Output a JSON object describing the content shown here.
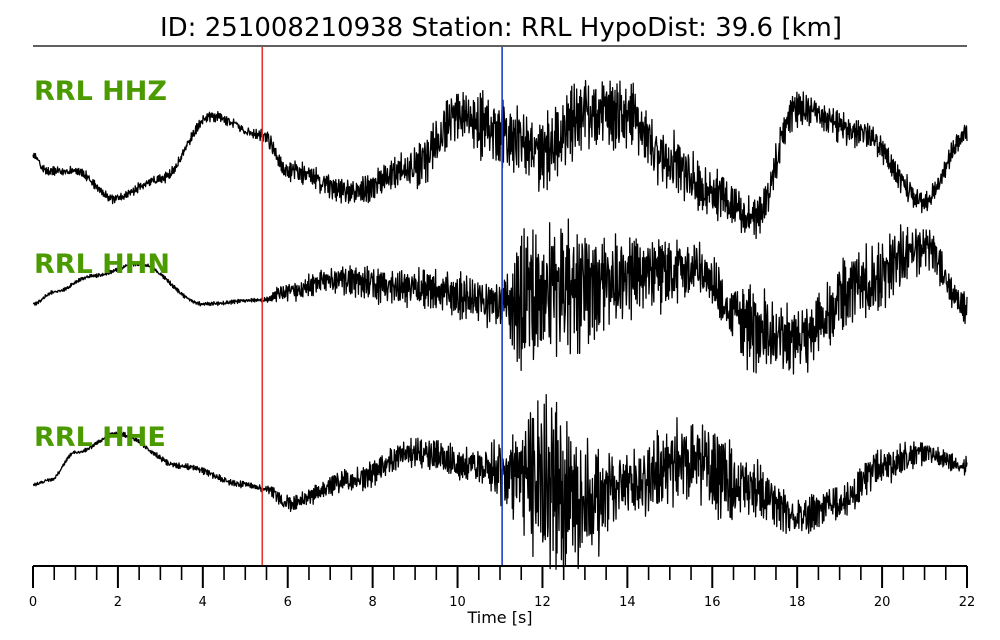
{
  "title": "ID: 251008210938   Station: RRL   HypoDist:    39.6 [km]",
  "colors": {
    "label": "#4a9a00",
    "p_pick": "#e8342c",
    "s_pick": "#1f3fd0",
    "trace": "#000000"
  },
  "chart_data": {
    "type": "line",
    "xlabel": "Time [s]",
    "xlim": [
      0,
      22
    ],
    "x_ticks": [
      0,
      2,
      4,
      6,
      8,
      10,
      12,
      14,
      16,
      18,
      20,
      22
    ],
    "x_minor_step": 0.5,
    "picks": [
      {
        "phase": "P",
        "time": 5.4,
        "color": "#e8342c"
      },
      {
        "phase": "S",
        "time": 11.05,
        "color": "#1f3fd0"
      }
    ],
    "series": [
      {
        "name": "RRL HHZ",
        "envelope": [
          [
            0,
            0.4
          ],
          [
            5.3,
            0.5
          ],
          [
            5.5,
            0.9
          ],
          [
            8,
            1.3
          ],
          [
            10,
            2.6
          ],
          [
            11,
            3.2
          ],
          [
            12,
            3.4
          ],
          [
            14,
            3.2
          ],
          [
            16,
            2.3
          ],
          [
            18,
            1.6
          ],
          [
            20,
            1.2
          ],
          [
            22,
            1.0
          ]
        ],
        "baseline": [
          [
            0,
            1.0
          ],
          [
            0.3,
            5
          ],
          [
            1,
            5
          ],
          [
            1.9,
            11.5
          ],
          [
            3,
            7
          ],
          [
            4.2,
            -8
          ],
          [
            5.4,
            -3.5
          ],
          [
            6,
            5
          ],
          [
            7.5,
            10
          ],
          [
            9,
            4
          ],
          [
            10,
            -8
          ],
          [
            11,
            -4
          ],
          [
            12,
            1
          ],
          [
            13,
            -9
          ],
          [
            14,
            -8
          ],
          [
            15,
            3
          ],
          [
            16,
            10
          ],
          [
            17,
            16
          ],
          [
            18,
            -10
          ],
          [
            19.5,
            -4
          ],
          [
            21,
            12
          ],
          [
            22,
            -4
          ]
        ]
      },
      {
        "name": "RRL HHN",
        "envelope": [
          [
            0,
            0.2
          ],
          [
            5.4,
            0.2
          ],
          [
            6,
            1.1
          ],
          [
            9,
            2.1
          ],
          [
            11,
            2.6
          ],
          [
            11.6,
            8.4
          ],
          [
            12.5,
            7
          ],
          [
            14,
            4.5
          ],
          [
            16,
            3
          ],
          [
            17,
            4.5
          ],
          [
            18,
            3.5
          ],
          [
            20,
            4
          ],
          [
            22,
            1.5
          ]
        ],
        "baseline": [
          [
            0,
            1
          ],
          [
            0.5,
            -2
          ],
          [
            1.4,
            -6
          ],
          [
            2.5,
            -9
          ],
          [
            4,
            1
          ],
          [
            5.4,
            0
          ],
          [
            6,
            -2
          ],
          [
            7,
            -5
          ],
          [
            9,
            -3
          ],
          [
            11,
            1
          ],
          [
            12,
            -2
          ],
          [
            13,
            -3
          ],
          [
            14,
            -6
          ],
          [
            15.5,
            -8
          ],
          [
            17,
            7
          ],
          [
            18,
            10
          ],
          [
            19.5,
            -4
          ],
          [
            21,
            -13
          ],
          [
            22,
            2
          ]
        ]
      },
      {
        "name": "RRL HHE",
        "envelope": [
          [
            0,
            0.2
          ],
          [
            5.4,
            0.4
          ],
          [
            6,
            1.0
          ],
          [
            8,
            1.5
          ],
          [
            10.5,
            2.0
          ],
          [
            11.1,
            4.5
          ],
          [
            12,
            10
          ],
          [
            13,
            7.5
          ],
          [
            14,
            4
          ],
          [
            15,
            5
          ],
          [
            16,
            5
          ],
          [
            17,
            3.5
          ],
          [
            18,
            2.2
          ],
          [
            20,
            2
          ],
          [
            22,
            1
          ]
        ],
        "baseline": [
          [
            0,
            1
          ],
          [
            0.4,
            0
          ],
          [
            1,
            -6
          ],
          [
            2,
            -10
          ],
          [
            3.5,
            -3
          ],
          [
            5,
            1
          ],
          [
            5.5,
            2
          ],
          [
            6,
            5
          ],
          [
            7.5,
            0
          ],
          [
            9,
            -6
          ],
          [
            10.5,
            -3
          ],
          [
            12,
            1
          ],
          [
            13,
            5
          ],
          [
            14,
            1
          ],
          [
            15.5,
            -4
          ],
          [
            17,
            2
          ],
          [
            18,
            8
          ],
          [
            19,
            5
          ],
          [
            20,
            -3
          ],
          [
            21,
            -6
          ],
          [
            22,
            -3
          ]
        ]
      }
    ]
  }
}
